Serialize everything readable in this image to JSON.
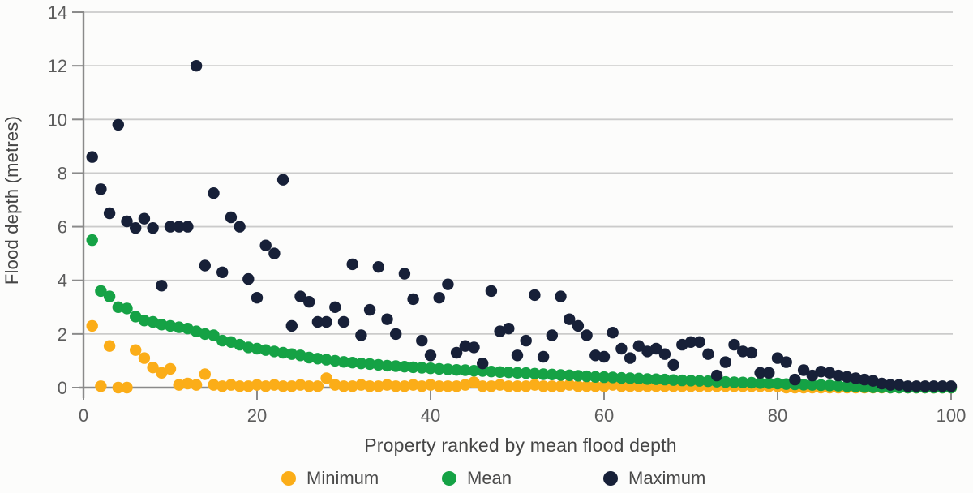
{
  "chart_data": {
    "type": "scatter",
    "title": "",
    "xlabel": "Property ranked by mean flood depth",
    "ylabel": "Flood depth (metres)",
    "x_ticks": [
      0,
      20,
      40,
      60,
      80,
      100
    ],
    "y_ticks": [
      0,
      2,
      4,
      6,
      8,
      10,
      12,
      14
    ],
    "xlim": [
      0,
      101.5
    ],
    "ylim": [
      0,
      14
    ],
    "grid": "horizontal-only",
    "legend_position": "bottom-center",
    "x_definition": "property rank 1-100",
    "colors": {
      "grid": "#cbcbcb",
      "axis": "#8a8a8a",
      "tick_text": "#5c5c5c",
      "title_text": "#454545",
      "background": "#fcfcfb"
    },
    "series": [
      {
        "name": "Minimum",
        "color": "#FBAD18",
        "values": [
          2.3,
          0.05,
          1.55,
          0,
          0,
          1.4,
          1.1,
          0.75,
          0.55,
          0.7,
          0.1,
          0.15,
          0.1,
          0.5,
          0.1,
          0.05,
          0.1,
          0.05,
          0.05,
          0.1,
          0.05,
          0.1,
          0.05,
          0.05,
          0.1,
          0.05,
          0.05,
          0.35,
          0.1,
          0.05,
          0.05,
          0.1,
          0.05,
          0.05,
          0.1,
          0.05,
          0.05,
          0.1,
          0.05,
          0.1,
          0.05,
          0.05,
          0.05,
          0.1,
          0.2,
          0.05,
          0.05,
          0.1,
          0.05,
          0.05,
          0.05,
          0.1,
          0.05,
          0.05,
          0.05,
          0.1,
          0.05,
          0.05,
          0.05,
          0.05,
          0.1,
          0.05,
          0.05,
          0.05,
          0.05,
          0.05,
          0.05,
          0.05,
          0.05,
          0.05,
          0.05,
          0.05,
          0.05,
          0.05,
          0.05,
          0.05,
          0.05,
          0.05,
          0.05,
          0.05,
          0,
          0,
          0,
          0,
          0,
          0,
          0,
          0,
          0,
          0,
          0,
          0,
          0,
          0,
          0,
          0,
          0,
          0,
          0,
          0
        ]
      },
      {
        "name": "Mean",
        "color": "#15A245",
        "values": [
          5.5,
          3.6,
          3.4,
          3.0,
          2.95,
          2.65,
          2.5,
          2.45,
          2.35,
          2.3,
          2.25,
          2.2,
          2.1,
          2.0,
          1.95,
          1.75,
          1.7,
          1.6,
          1.5,
          1.45,
          1.4,
          1.35,
          1.3,
          1.25,
          1.2,
          1.12,
          1.08,
          1.04,
          1.0,
          0.96,
          0.93,
          0.9,
          0.88,
          0.85,
          0.82,
          0.8,
          0.78,
          0.76,
          0.74,
          0.72,
          0.7,
          0.68,
          0.66,
          0.65,
          0.63,
          0.62,
          0.6,
          0.58,
          0.57,
          0.55,
          0.54,
          0.52,
          0.5,
          0.49,
          0.47,
          0.46,
          0.44,
          0.42,
          0.4,
          0.39,
          0.38,
          0.36,
          0.35,
          0.34,
          0.32,
          0.31,
          0.3,
          0.28,
          0.27,
          0.26,
          0.25,
          0.24,
          0.22,
          0.21,
          0.2,
          0.19,
          0.18,
          0.17,
          0.16,
          0.15,
          0.13,
          0.12,
          0.11,
          0.1,
          0.09,
          0.08,
          0.07,
          0.05,
          0.04,
          0.02,
          0.01,
          0.01,
          0,
          0,
          0,
          0,
          0,
          0,
          0,
          0
        ]
      },
      {
        "name": "Maximum",
        "color": "#172038",
        "values": [
          8.6,
          7.4,
          6.5,
          9.8,
          6.2,
          5.95,
          6.3,
          5.95,
          3.8,
          6.0,
          6.0,
          6.0,
          12.0,
          4.55,
          7.25,
          4.3,
          6.35,
          6.0,
          4.05,
          3.35,
          5.3,
          5.0,
          7.75,
          2.3,
          3.4,
          3.2,
          2.45,
          2.45,
          3.0,
          2.45,
          4.6,
          1.95,
          2.9,
          4.5,
          2.55,
          2.0,
          4.25,
          3.3,
          1.75,
          1.2,
          3.35,
          3.85,
          1.3,
          1.55,
          1.5,
          0.9,
          3.6,
          2.1,
          2.2,
          1.2,
          1.75,
          3.45,
          1.15,
          1.95,
          3.4,
          2.55,
          2.3,
          1.95,
          1.2,
          1.15,
          2.05,
          1.45,
          1.1,
          1.55,
          1.35,
          1.45,
          1.25,
          0.85,
          1.6,
          1.7,
          1.7,
          1.25,
          0.45,
          0.95,
          1.6,
          1.35,
          1.3,
          0.55,
          0.55,
          1.1,
          0.95,
          0.3,
          0.65,
          0.45,
          0.6,
          0.55,
          0.45,
          0.4,
          0.35,
          0.3,
          0.25,
          0.15,
          0.1,
          0.1,
          0.05,
          0.05,
          0.05,
          0.05,
          0.05,
          0.05
        ]
      }
    ]
  }
}
